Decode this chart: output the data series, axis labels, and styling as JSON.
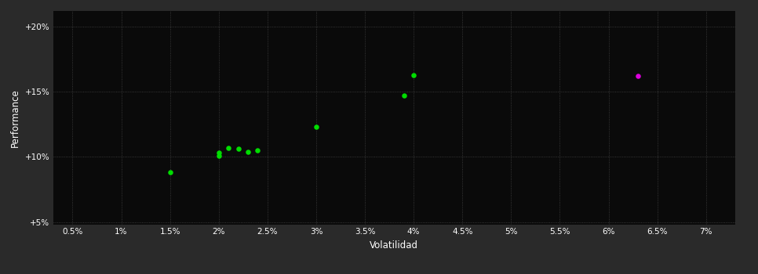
{
  "background_color": "#2a2a2a",
  "plot_bg_color": "#0a0a0a",
  "grid_color": "#444444",
  "text_color": "#ffffff",
  "xlabel": "Volatilidad",
  "ylabel": "Performance",
  "x_ticks": [
    0.005,
    0.01,
    0.015,
    0.02,
    0.025,
    0.03,
    0.035,
    0.04,
    0.045,
    0.05,
    0.055,
    0.06,
    0.065,
    0.07
  ],
  "x_tick_labels": [
    "0.5%",
    "1%",
    "1.5%",
    "2%",
    "2.5%",
    "3%",
    "3.5%",
    "4%",
    "4.5%",
    "5%",
    "5.5%",
    "6%",
    "6.5%",
    "7%"
  ],
  "y_ticks": [
    0.05,
    0.1,
    0.15,
    0.2
  ],
  "y_tick_labels": [
    "+5%",
    "+10%",
    "+15%",
    "+20%"
  ],
  "xlim": [
    0.003,
    0.073
  ],
  "ylim": [
    0.048,
    0.212
  ],
  "green_points": [
    [
      0.015,
      0.088
    ],
    [
      0.02,
      0.101
    ],
    [
      0.02,
      0.103
    ],
    [
      0.021,
      0.107
    ],
    [
      0.022,
      0.106
    ],
    [
      0.023,
      0.104
    ],
    [
      0.024,
      0.105
    ],
    [
      0.03,
      0.123
    ],
    [
      0.039,
      0.147
    ],
    [
      0.04,
      0.163
    ]
  ],
  "magenta_points": [
    [
      0.063,
      0.162
    ]
  ],
  "green_color": "#00dd00",
  "magenta_color": "#dd00dd",
  "marker_size": 22
}
